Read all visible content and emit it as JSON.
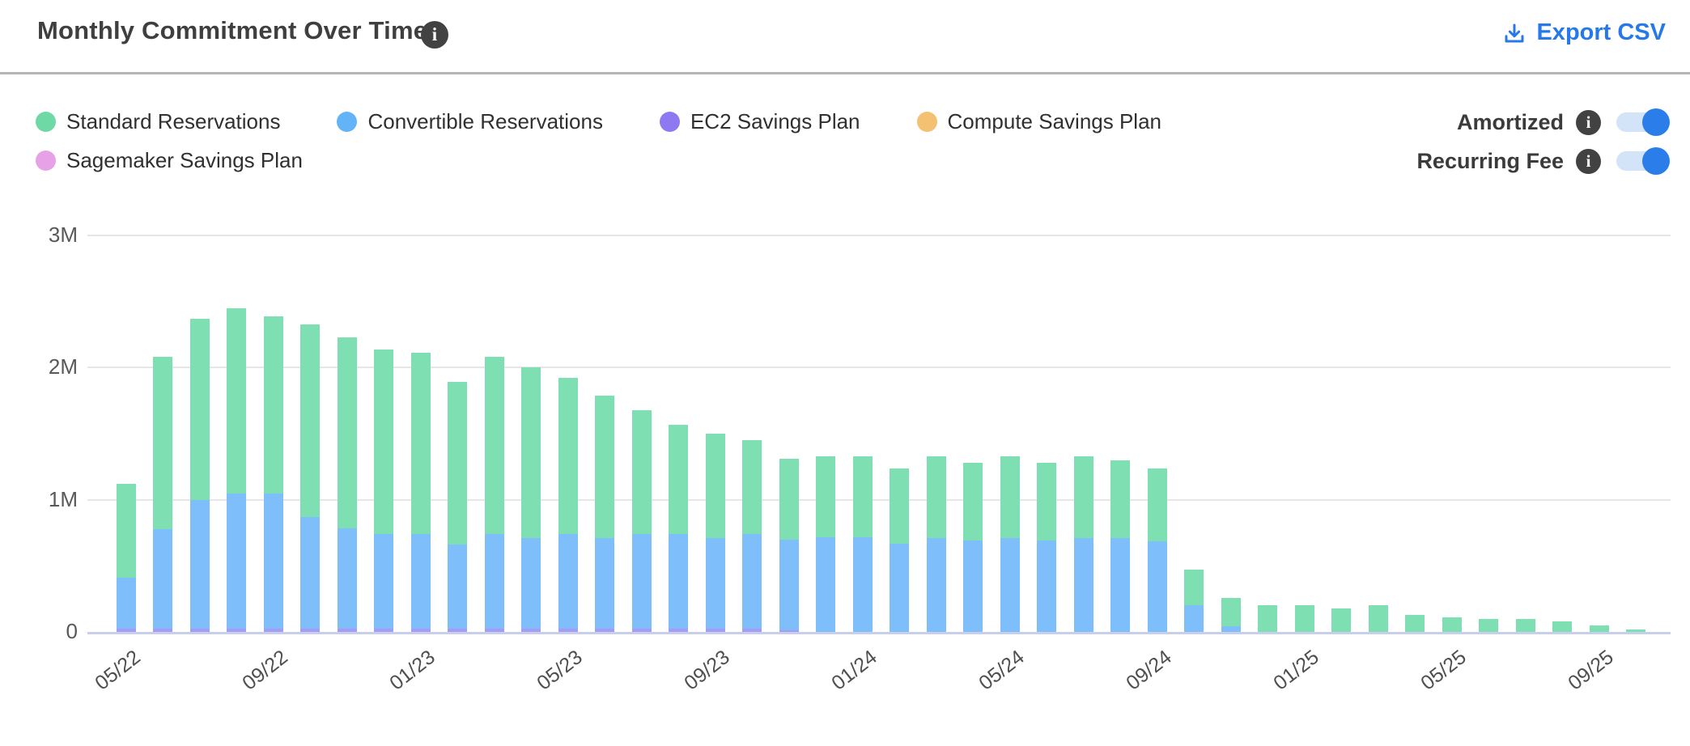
{
  "header": {
    "title": "Monthly Commitment Over Time",
    "export_label": "Export CSV"
  },
  "legend": [
    {
      "label": "Standard Reservations",
      "color": "#6fd9a6"
    },
    {
      "label": "Convertible Reservations",
      "color": "#63b3f7"
    },
    {
      "label": "EC2 Savings Plan",
      "color": "#8f79f3"
    },
    {
      "label": "Compute Savings Plan",
      "color": "#f4c173"
    },
    {
      "label": "Sagemaker Savings Plan",
      "color": "#e7a1e6"
    }
  ],
  "toggles": [
    {
      "label": "Amortized",
      "state": "on"
    },
    {
      "label": "Recurring Fee",
      "state": "on"
    }
  ],
  "chart_data": {
    "type": "bar",
    "stacked": true,
    "value_unit": "M",
    "ylim": [
      0,
      3000000
    ],
    "y_tick_labels": [
      "0",
      "1M",
      "2M",
      "3M"
    ],
    "x_tick_every": 4,
    "grid": true,
    "legend_position": "top",
    "categories": [
      "05/22",
      "06/22",
      "07/22",
      "08/22",
      "09/22",
      "10/22",
      "11/22",
      "12/22",
      "01/23",
      "02/23",
      "03/23",
      "04/23",
      "05/23",
      "06/23",
      "07/23",
      "08/23",
      "09/23",
      "10/23",
      "11/23",
      "12/23",
      "01/24",
      "02/24",
      "03/24",
      "04/24",
      "05/24",
      "06/24",
      "07/24",
      "08/24",
      "09/24",
      "10/24",
      "11/24",
      "12/24",
      "01/25",
      "02/25",
      "03/25",
      "04/25",
      "05/25",
      "06/25",
      "07/25",
      "08/25",
      "09/25",
      "10/25"
    ],
    "series": [
      {
        "name": "EC2 Savings Plan",
        "color": "#a89bf8",
        "values_millions": [
          0.025,
          0.025,
          0.025,
          0.025,
          0.025,
          0.025,
          0.025,
          0.025,
          0.025,
          0.025,
          0.025,
          0.025,
          0.025,
          0.025,
          0.025,
          0.025,
          0.025,
          0.025,
          0.01,
          0,
          0,
          0,
          0,
          0,
          0,
          0,
          0,
          0,
          0,
          0,
          0,
          0,
          0,
          0,
          0,
          0,
          0,
          0,
          0,
          0,
          0,
          0
        ]
      },
      {
        "name": "Convertible Reservations",
        "color": "#7ebefb",
        "values_millions": [
          0.385,
          0.75,
          0.975,
          1.02,
          1.02,
          0.845,
          0.76,
          0.715,
          0.715,
          0.635,
          0.715,
          0.685,
          0.715,
          0.685,
          0.715,
          0.715,
          0.685,
          0.715,
          0.69,
          0.715,
          0.715,
          0.665,
          0.71,
          0.69,
          0.71,
          0.69,
          0.71,
          0.71,
          0.685,
          0.2,
          0.04,
          0,
          0,
          0,
          0,
          0,
          0,
          0,
          0,
          0,
          0,
          0
        ]
      },
      {
        "name": "Standard Reservations",
        "color": "#7edfb2",
        "values_millions": [
          0.71,
          1.305,
          1.37,
          1.405,
          1.345,
          1.46,
          1.445,
          1.4,
          1.37,
          1.23,
          1.34,
          1.29,
          1.18,
          1.08,
          0.94,
          0.83,
          0.79,
          0.71,
          0.61,
          0.615,
          0.615,
          0.575,
          0.62,
          0.59,
          0.62,
          0.59,
          0.62,
          0.59,
          0.555,
          0.27,
          0.22,
          0.2,
          0.2,
          0.175,
          0.2,
          0.127,
          0.113,
          0.099,
          0.1,
          0.077,
          0.048,
          0.017
        ]
      },
      {
        "name": "Compute Savings Plan",
        "color": "#f4c173",
        "values_millions": [
          0,
          0,
          0,
          0,
          0,
          0,
          0,
          0,
          0,
          0,
          0,
          0,
          0,
          0,
          0,
          0,
          0,
          0,
          0,
          0,
          0,
          0,
          0,
          0,
          0,
          0,
          0,
          0,
          0,
          0,
          0,
          0,
          0,
          0,
          0,
          0,
          0,
          0,
          0,
          0,
          0,
          0
        ]
      },
      {
        "name": "Sagemaker Savings Plan",
        "color": "#e7a1e6",
        "values_millions": [
          0,
          0,
          0,
          0,
          0,
          0,
          0,
          0,
          0,
          0,
          0,
          0,
          0,
          0,
          0,
          0,
          0,
          0,
          0,
          0,
          0,
          0,
          0,
          0,
          0,
          0,
          0,
          0,
          0,
          0,
          0,
          0,
          0,
          0,
          0,
          0,
          0,
          0,
          0,
          0,
          0,
          0
        ]
      }
    ]
  }
}
